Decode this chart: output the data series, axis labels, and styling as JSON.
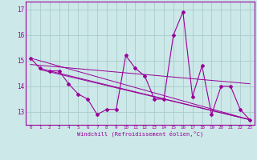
{
  "x": [
    0,
    1,
    2,
    3,
    4,
    5,
    6,
    7,
    8,
    9,
    10,
    11,
    12,
    13,
    14,
    15,
    16,
    17,
    18,
    19,
    20,
    21,
    22,
    23
  ],
  "line1": [
    15.1,
    14.7,
    14.6,
    14.6,
    14.1,
    13.7,
    13.5,
    12.9,
    13.1,
    13.1,
    15.2,
    14.7,
    14.4,
    13.5,
    13.5,
    16.0,
    16.9,
    13.6,
    14.8,
    12.9,
    14.0,
    14.0,
    13.1,
    12.7
  ],
  "trend_lines": [
    {
      "x": [
        0,
        23
      ],
      "y": [
        15.1,
        12.7
      ]
    },
    {
      "x": [
        1,
        23
      ],
      "y": [
        14.65,
        12.7
      ]
    },
    {
      "x": [
        2,
        23
      ],
      "y": [
        14.6,
        12.7
      ]
    },
    {
      "x": [
        0,
        23
      ],
      "y": [
        14.85,
        14.1
      ]
    }
  ],
  "color": "#990099",
  "bg_color": "#cce8e8",
  "grid_color": "#aacccc",
  "xlabel": "Windchill (Refroidissement éolien,°C)",
  "ylabel_ticks": [
    13,
    14,
    15,
    16,
    17
  ],
  "xlim": [
    -0.5,
    23.5
  ],
  "ylim": [
    12.5,
    17.3
  ],
  "figsize": [
    3.2,
    2.0
  ],
  "dpi": 100
}
